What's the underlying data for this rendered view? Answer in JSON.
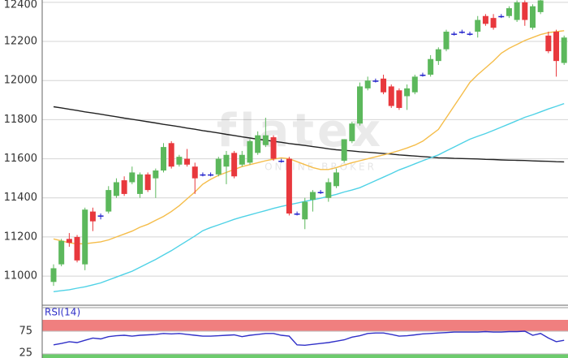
{
  "chart_data": [
    {
      "type": "candlestick",
      "watermark": "flatex",
      "watermark_sub": "ONLINE BROKER",
      "ylim": [
        10855,
        12412
      ],
      "yticks": [
        11000,
        11200,
        11400,
        11600,
        11800,
        12000,
        12200,
        12400
      ],
      "grid": true,
      "up_color": "#5cb85c",
      "down_color": "#e8383d",
      "flat_color": "#2222cc",
      "open": [
        10970,
        11060,
        11190,
        11200,
        11060,
        11330,
        11310,
        11330,
        11410,
        11490,
        11480,
        11420,
        11520,
        11500,
        11540,
        11680,
        11570,
        11600,
        11560,
        11520,
        11520,
        11520,
        11560,
        11630,
        11570,
        11580,
        11630,
        11670,
        11710,
        11590,
        11600,
        11320,
        11290,
        11390,
        11430,
        11400,
        11460,
        11590,
        11690,
        11780,
        11960,
        12000,
        12010,
        11970,
        11950,
        11920,
        11940,
        12030,
        12030,
        12100,
        12160,
        12240,
        12250,
        12240,
        12250,
        12330,
        12320,
        12330,
        12330,
        12310,
        12400,
        12270,
        12350,
        12230,
        12250,
        12090
      ],
      "high": [
        11060,
        11190,
        11220,
        11210,
        11350,
        11350,
        11320,
        11460,
        11500,
        11510,
        11560,
        11530,
        11530,
        11550,
        11680,
        11690,
        11620,
        11650,
        11580,
        11530,
        11530,
        11610,
        11640,
        11640,
        11640,
        11700,
        11740,
        11810,
        11720,
        11600,
        11610,
        11330,
        11400,
        11440,
        11440,
        11500,
        11550,
        11700,
        11790,
        11990,
        12020,
        12010,
        12030,
        11980,
        11960,
        11980,
        12030,
        12040,
        12130,
        12170,
        12260,
        12250,
        12260,
        12250,
        12330,
        12340,
        12340,
        12340,
        12380,
        12410,
        12410,
        12390,
        12420,
        12250,
        12260,
        12230
      ],
      "low": [
        10950,
        11050,
        11150,
        11070,
        11030,
        11230,
        11290,
        11320,
        11400,
        11410,
        11470,
        11400,
        11430,
        11400,
        11530,
        11550,
        11560,
        11560,
        11420,
        11510,
        11510,
        11510,
        11470,
        11500,
        11560,
        11570,
        11620,
        11660,
        11590,
        11580,
        11310,
        11310,
        11240,
        11330,
        11420,
        11380,
        11450,
        11580,
        11680,
        11770,
        11950,
        11990,
        11930,
        11860,
        11850,
        11850,
        11930,
        12020,
        12020,
        12080,
        12150,
        12230,
        12240,
        12230,
        12220,
        12280,
        12260,
        12320,
        12320,
        12300,
        12280,
        12260,
        12340,
        12140,
        12020,
        12080
      ],
      "close": [
        11040,
        11180,
        11170,
        11080,
        11340,
        11280,
        11310,
        11440,
        11480,
        11420,
        11530,
        11520,
        11440,
        11540,
        11660,
        11560,
        11610,
        11570,
        11500,
        11520,
        11520,
        11600,
        11620,
        11510,
        11620,
        11690,
        11720,
        11720,
        11600,
        11590,
        11320,
        11320,
        11380,
        11430,
        11430,
        11480,
        11530,
        11700,
        11780,
        11970,
        12000,
        12000,
        11940,
        11870,
        11860,
        11960,
        12020,
        12030,
        12110,
        12160,
        12250,
        12240,
        12250,
        12240,
        12310,
        12290,
        12270,
        12330,
        12370,
        12400,
        12310,
        12380,
        12410,
        12150,
        12100,
        12220
      ],
      "series": [
        {
          "color": "#222222",
          "values": [
            11866,
            11860,
            11853,
            11847,
            11840,
            11834,
            11828,
            11821,
            11815,
            11808,
            11802,
            11796,
            11789,
            11783,
            11776,
            11770,
            11764,
            11757,
            11751,
            11744,
            11738,
            11732,
            11725,
            11719,
            11712,
            11706,
            11700,
            11695,
            11689,
            11684,
            11678,
            11673,
            11668,
            11662,
            11657,
            11651,
            11646,
            11643,
            11640,
            11636,
            11633,
            11630,
            11627,
            11624,
            11620,
            11617,
            11614,
            11611,
            11608,
            11605,
            11604,
            11602,
            11601,
            11600,
            11599,
            11597,
            11596,
            11594,
            11593,
            11592,
            11591,
            11589,
            11588,
            11587,
            11585,
            11584
          ]
        },
        {
          "color": "#f5bd4a",
          "values": [
            11190,
            11180,
            11170,
            11165,
            11165,
            11170,
            11175,
            11185,
            11200,
            11215,
            11230,
            11250,
            11265,
            11285,
            11305,
            11330,
            11360,
            11395,
            11430,
            11470,
            11495,
            11515,
            11530,
            11545,
            11560,
            11570,
            11580,
            11590,
            11598,
            11605,
            11600,
            11585,
            11570,
            11555,
            11545,
            11545,
            11555,
            11568,
            11580,
            11590,
            11600,
            11610,
            11620,
            11630,
            11642,
            11655,
            11670,
            11690,
            11720,
            11750,
            11810,
            11870,
            11930,
            11990,
            12030,
            12065,
            12100,
            12140,
            12165,
            12185,
            12205,
            12220,
            12235,
            12245,
            12250,
            12255
          ]
        },
        {
          "color": "#4fd2e6",
          "values": [
            10920,
            10925,
            10930,
            10938,
            10945,
            10955,
            10965,
            10980,
            10995,
            11010,
            11025,
            11045,
            11065,
            11085,
            11108,
            11130,
            11155,
            11180,
            11205,
            11232,
            11248,
            11262,
            11276,
            11290,
            11302,
            11313,
            11324,
            11335,
            11346,
            11356,
            11365,
            11373,
            11382,
            11390,
            11398,
            11408,
            11418,
            11430,
            11440,
            11452,
            11470,
            11488,
            11506,
            11524,
            11543,
            11558,
            11574,
            11590,
            11605,
            11620,
            11640,
            11660,
            11680,
            11700,
            11715,
            11729,
            11745,
            11762,
            11778,
            11795,
            11812,
            11825,
            11840,
            11855,
            11868,
            11882
          ]
        }
      ]
    },
    {
      "type": "line",
      "ylim": [
        16,
        100
      ],
      "yticks": [
        25,
        75
      ],
      "bands": [
        {
          "from": 75,
          "to": 100,
          "color": "#f07f7f"
        },
        {
          "from": 16,
          "to": 25,
          "color": "#6ccb6c"
        }
      ],
      "series": [
        {
          "name": "RSI(14)",
          "color": "#3030c8",
          "values": [
            45,
            48,
            52,
            50,
            55,
            60,
            58,
            63,
            65,
            66,
            64,
            66,
            67,
            68,
            70,
            69,
            70,
            68,
            66,
            64,
            64,
            65,
            66,
            67,
            63,
            66,
            68,
            70,
            70,
            66,
            64,
            45,
            44,
            46,
            48,
            50,
            53,
            56,
            62,
            65,
            70,
            71,
            71,
            68,
            64,
            65,
            67,
            69,
            70,
            71,
            72,
            73,
            73,
            73,
            73,
            74,
            73,
            73,
            74,
            74,
            75,
            66,
            70,
            60,
            52,
            55
          ]
        }
      ]
    }
  ]
}
